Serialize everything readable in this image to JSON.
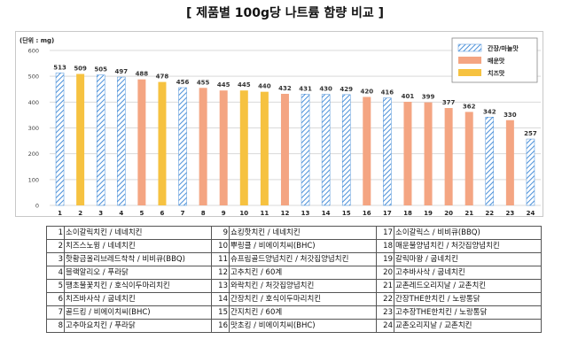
{
  "title": "[ 제품별 100g당 나트륨 함량 비교 ]",
  "chart_data": {
    "type": "bar",
    "unit_label": "(단위 : mg)",
    "ylim": [
      0,
      600
    ],
    "yticks": [
      0,
      100,
      200,
      300,
      400,
      500,
      600
    ],
    "grid": true,
    "legend_position": "top-right",
    "categories": [
      "1",
      "2",
      "3",
      "4",
      "5",
      "6",
      "7",
      "8",
      "9",
      "10",
      "11",
      "12",
      "13",
      "14",
      "15",
      "16",
      "17",
      "18",
      "19",
      "20",
      "21",
      "22",
      "23",
      "24"
    ],
    "values": [
      513,
      509,
      505,
      497,
      488,
      478,
      456,
      455,
      445,
      445,
      440,
      432,
      431,
      430,
      429,
      420,
      416,
      401,
      399,
      377,
      362,
      342,
      330,
      257
    ],
    "series_of_bar": [
      "soy",
      "cheese",
      "soy",
      "soy",
      "spicy",
      "cheese",
      "soy",
      "spicy",
      "spicy",
      "cheese",
      "cheese",
      "spicy",
      "soy",
      "soy",
      "soy",
      "spicy",
      "soy",
      "spicy",
      "spicy",
      "spicy",
      "spicy",
      "soy",
      "spicy",
      "soy"
    ],
    "series": [
      {
        "key": "soy",
        "name": "간장/마늘맛",
        "color": "#4a90d9",
        "pattern": "hatch"
      },
      {
        "key": "spicy",
        "name": "매운맛",
        "color": "#f4a582"
      },
      {
        "key": "cheese",
        "name": "치즈맛",
        "color": "#f6c240"
      }
    ]
  },
  "products": [
    {
      "no": "1",
      "name": "소이갈릭치킨 / 네네치킨"
    },
    {
      "no": "2",
      "name": "치즈스노윙 / 네네치킨"
    },
    {
      "no": "3",
      "name": "핫황금올리브레드착착 / 비비큐(BBQ)"
    },
    {
      "no": "4",
      "name": "블랙알리오 / 푸라닭"
    },
    {
      "no": "5",
      "name": "땡초불꽃치킨 / 호식이두마리치킨"
    },
    {
      "no": "6",
      "name": "치즈바사삭 / 굽네치킨"
    },
    {
      "no": "7",
      "name": "골드킹 / 비에이치씨(BHC)"
    },
    {
      "no": "8",
      "name": "고추마요치킨 / 푸라닭"
    },
    {
      "no": "9",
      "name": "쇼킹핫치킨 / 네네치킨"
    },
    {
      "no": "10",
      "name": "뿌링클 / 비에이치씨(BHC)"
    },
    {
      "no": "11",
      "name": "슈프림골드양념치킨 / 처갓집양념치킨"
    },
    {
      "no": "12",
      "name": "고추치킨 / 60계"
    },
    {
      "no": "13",
      "name": "와락치킨 / 처갓집양념치킨"
    },
    {
      "no": "14",
      "name": "간장치킨 / 호식이두마리치킨"
    },
    {
      "no": "15",
      "name": "간지치킨 / 60계"
    },
    {
      "no": "16",
      "name": "맛초킹 / 비에이치씨(BHC)"
    },
    {
      "no": "17",
      "name": "소이갈릭스 / 비비큐(BBQ)"
    },
    {
      "no": "18",
      "name": "매운불양념치킨 / 처갓집양념치킨"
    },
    {
      "no": "19",
      "name": "갈릭마왕 / 굽네치킨"
    },
    {
      "no": "20",
      "name": "고추바사삭 / 굽네치킨"
    },
    {
      "no": "21",
      "name": "교촌레드오리지날 / 교촌치킨"
    },
    {
      "no": "22",
      "name": "간장THE한치킨 / 노랑통닭"
    },
    {
      "no": "23",
      "name": "고추장THE한치킨 / 노랑통닭"
    },
    {
      "no": "24",
      "name": "교촌오리지날 / 교촌치킨"
    }
  ]
}
